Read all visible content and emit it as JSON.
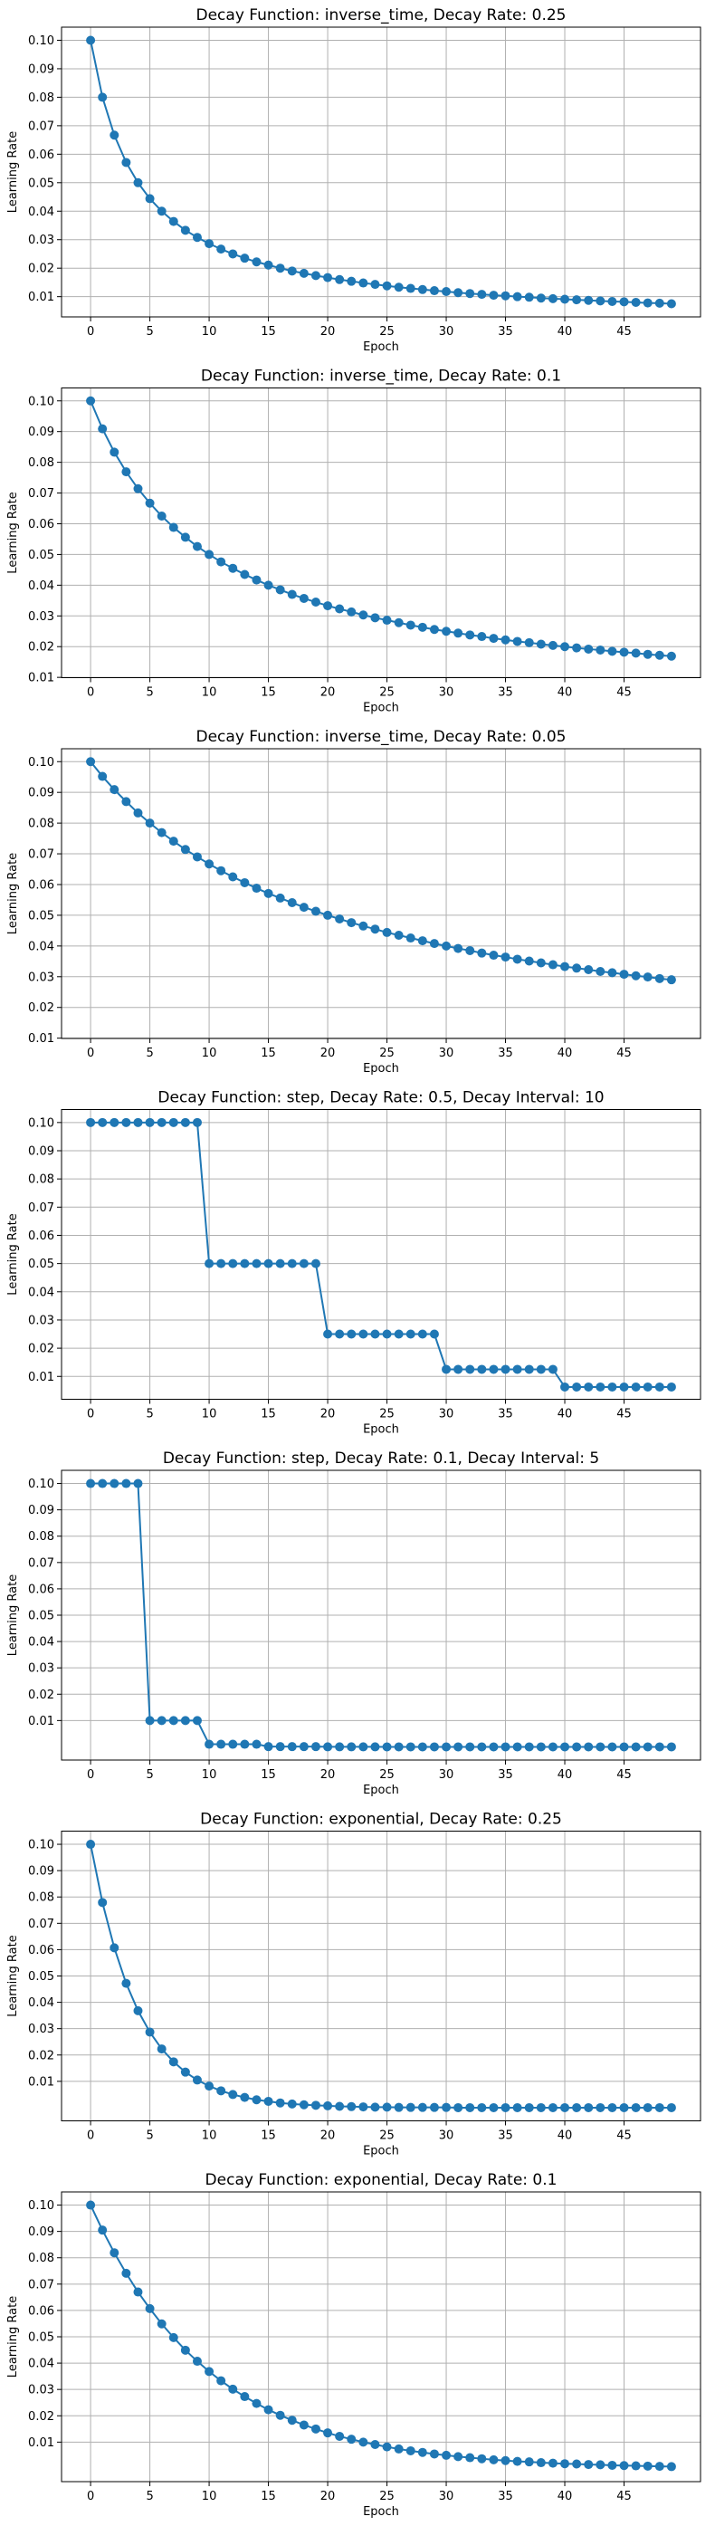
{
  "chart_data": [
    {
      "type": "line",
      "title": "Decay Function: inverse_time, Decay Rate: 0.25",
      "xlabel": "Epoch",
      "ylabel": "Learning Rate",
      "decay_function": "inverse_time",
      "decay_rate": 0.25,
      "x": [
        0,
        1,
        2,
        3,
        4,
        5,
        6,
        7,
        8,
        9,
        10,
        11,
        12,
        13,
        14,
        15,
        16,
        17,
        18,
        19,
        20,
        21,
        22,
        23,
        24,
        25,
        26,
        27,
        28,
        29,
        30,
        31,
        32,
        33,
        34,
        35,
        36,
        37,
        38,
        39,
        40,
        41,
        42,
        43,
        44,
        45,
        46,
        47,
        48,
        49
      ],
      "values": [
        0.1,
        0.08,
        0.0667,
        0.0571,
        0.05,
        0.0444,
        0.04,
        0.0364,
        0.0333,
        0.0308,
        0.0286,
        0.0267,
        0.025,
        0.0235,
        0.0222,
        0.0211,
        0.02,
        0.019,
        0.0182,
        0.0174,
        0.0167,
        0.016,
        0.0154,
        0.0148,
        0.0143,
        0.0138,
        0.0133,
        0.0129,
        0.0125,
        0.0121,
        0.0118,
        0.0114,
        0.0111,
        0.0108,
        0.0105,
        0.0103,
        0.01,
        0.0098,
        0.0095,
        0.0093,
        0.0091,
        0.0089,
        0.0087,
        0.0085,
        0.0083,
        0.0082,
        0.008,
        0.0078,
        0.0077,
        0.0075
      ],
      "xticks": [
        0,
        5,
        10,
        15,
        20,
        25,
        30,
        35,
        40,
        45
      ],
      "yticks": [
        0.01,
        0.02,
        0.03,
        0.04,
        0.05,
        0.06,
        0.07,
        0.08,
        0.09,
        0.1
      ],
      "ytick_labels": [
        "0.01",
        "0.02",
        "0.03",
        "0.04",
        "0.05",
        "0.06",
        "0.07",
        "0.08",
        "0.09",
        "0.10"
      ],
      "xlim": [
        -2.45,
        51.45
      ],
      "ylim": [
        0.0029,
        0.1046
      ],
      "grid": true
    },
    {
      "type": "line",
      "title": "Decay Function: inverse_time, Decay Rate: 0.1",
      "xlabel": "Epoch",
      "ylabel": "Learning Rate",
      "decay_function": "inverse_time",
      "decay_rate": 0.1,
      "x": [
        0,
        1,
        2,
        3,
        4,
        5,
        6,
        7,
        8,
        9,
        10,
        11,
        12,
        13,
        14,
        15,
        16,
        17,
        18,
        19,
        20,
        21,
        22,
        23,
        24,
        25,
        26,
        27,
        28,
        29,
        30,
        31,
        32,
        33,
        34,
        35,
        36,
        37,
        38,
        39,
        40,
        41,
        42,
        43,
        44,
        45,
        46,
        47,
        48,
        49
      ],
      "values": [
        0.1,
        0.0909,
        0.0833,
        0.0769,
        0.0714,
        0.0667,
        0.0625,
        0.0588,
        0.0556,
        0.0526,
        0.05,
        0.0476,
        0.0455,
        0.0435,
        0.0417,
        0.04,
        0.0385,
        0.037,
        0.0357,
        0.0345,
        0.0333,
        0.0323,
        0.0313,
        0.0303,
        0.0294,
        0.0286,
        0.0278,
        0.027,
        0.0263,
        0.0256,
        0.025,
        0.0244,
        0.0238,
        0.0233,
        0.0227,
        0.0222,
        0.0217,
        0.0213,
        0.0208,
        0.0204,
        0.02,
        0.0196,
        0.0192,
        0.0189,
        0.0185,
        0.0182,
        0.0179,
        0.0175,
        0.0172,
        0.0169
      ],
      "xticks": [
        0,
        5,
        10,
        15,
        20,
        25,
        30,
        35,
        40,
        45
      ],
      "yticks": [
        0.01,
        0.02,
        0.03,
        0.04,
        0.05,
        0.06,
        0.07,
        0.08,
        0.09,
        0.1
      ],
      "ytick_labels": [
        "0.01",
        "0.02",
        "0.03",
        "0.04",
        "0.05",
        "0.06",
        "0.07",
        "0.08",
        "0.09",
        "0.10"
      ],
      "xlim": [
        -2.45,
        51.45
      ],
      "ylim": [
        0.0099,
        0.1042
      ],
      "grid": true
    },
    {
      "type": "line",
      "title": "Decay Function: inverse_time, Decay Rate: 0.05",
      "xlabel": "Epoch",
      "ylabel": "Learning Rate",
      "decay_function": "inverse_time",
      "decay_rate": 0.05,
      "x": [
        0,
        1,
        2,
        3,
        4,
        5,
        6,
        7,
        8,
        9,
        10,
        11,
        12,
        13,
        14,
        15,
        16,
        17,
        18,
        19,
        20,
        21,
        22,
        23,
        24,
        25,
        26,
        27,
        28,
        29,
        30,
        31,
        32,
        33,
        34,
        35,
        36,
        37,
        38,
        39,
        40,
        41,
        42,
        43,
        44,
        45,
        46,
        47,
        48,
        49
      ],
      "values": [
        0.1,
        0.0952,
        0.0909,
        0.087,
        0.0833,
        0.08,
        0.0769,
        0.0741,
        0.0714,
        0.069,
        0.0667,
        0.0645,
        0.0625,
        0.0606,
        0.0588,
        0.0571,
        0.0556,
        0.0541,
        0.0526,
        0.0513,
        0.05,
        0.0488,
        0.0476,
        0.0465,
        0.0455,
        0.0444,
        0.0435,
        0.0426,
        0.0417,
        0.0408,
        0.04,
        0.0392,
        0.0385,
        0.0377,
        0.037,
        0.0364,
        0.0357,
        0.0351,
        0.0345,
        0.0339,
        0.0333,
        0.0328,
        0.0323,
        0.0317,
        0.0313,
        0.0308,
        0.0303,
        0.0299,
        0.0294,
        0.029
      ],
      "xticks": [
        0,
        5,
        10,
        15,
        20,
        25,
        30,
        35,
        40,
        45
      ],
      "yticks": [
        0.01,
        0.02,
        0.03,
        0.04,
        0.05,
        0.06,
        0.07,
        0.08,
        0.09,
        0.1
      ],
      "ytick_labels": [
        "0.01",
        "0.02",
        "0.03",
        "0.04",
        "0.05",
        "0.06",
        "0.07",
        "0.08",
        "0.09",
        "0.10"
      ],
      "xlim": [
        -2.45,
        51.45
      ],
      "ylim": [
        0.0099,
        0.1042
      ],
      "grid": true
    },
    {
      "type": "line",
      "title": "Decay Function: step, Decay Rate: 0.5, Decay Interval: 10",
      "xlabel": "Epoch",
      "ylabel": "Learning Rate",
      "decay_function": "step",
      "decay_rate": 0.5,
      "decay_interval": 10,
      "x": [
        0,
        1,
        2,
        3,
        4,
        5,
        6,
        7,
        8,
        9,
        10,
        11,
        12,
        13,
        14,
        15,
        16,
        17,
        18,
        19,
        20,
        21,
        22,
        23,
        24,
        25,
        26,
        27,
        28,
        29,
        30,
        31,
        32,
        33,
        34,
        35,
        36,
        37,
        38,
        39,
        40,
        41,
        42,
        43,
        44,
        45,
        46,
        47,
        48,
        49
      ],
      "values": [
        0.1,
        0.1,
        0.1,
        0.1,
        0.1,
        0.1,
        0.1,
        0.1,
        0.1,
        0.1,
        0.05,
        0.05,
        0.05,
        0.05,
        0.05,
        0.05,
        0.05,
        0.05,
        0.05,
        0.05,
        0.025,
        0.025,
        0.025,
        0.025,
        0.025,
        0.025,
        0.025,
        0.025,
        0.025,
        0.025,
        0.0125,
        0.0125,
        0.0125,
        0.0125,
        0.0125,
        0.0125,
        0.0125,
        0.0125,
        0.0125,
        0.0125,
        0.00625,
        0.00625,
        0.00625,
        0.00625,
        0.00625,
        0.00625,
        0.00625,
        0.00625,
        0.00625,
        0.00625
      ],
      "xticks": [
        0,
        5,
        10,
        15,
        20,
        25,
        30,
        35,
        40,
        45
      ],
      "yticks": [
        0.01,
        0.02,
        0.03,
        0.04,
        0.05,
        0.06,
        0.07,
        0.08,
        0.09,
        0.1
      ],
      "ytick_labels": [
        "0.01",
        "0.02",
        "0.03",
        "0.04",
        "0.05",
        "0.06",
        "0.07",
        "0.08",
        "0.09",
        "0.10"
      ],
      "xlim": [
        -2.45,
        51.45
      ],
      "ylim": [
        0.0019,
        0.1046
      ],
      "grid": true
    },
    {
      "type": "line",
      "title": "Decay Function: step, Decay Rate: 0.1, Decay Interval: 5",
      "xlabel": "Epoch",
      "ylabel": "Learning Rate",
      "decay_function": "step",
      "decay_rate": 0.1,
      "decay_interval": 5,
      "x": [
        0,
        1,
        2,
        3,
        4,
        5,
        6,
        7,
        8,
        9,
        10,
        11,
        12,
        13,
        14,
        15,
        16,
        17,
        18,
        19,
        20,
        21,
        22,
        23,
        24,
        25,
        26,
        27,
        28,
        29,
        30,
        31,
        32,
        33,
        34,
        35,
        36,
        37,
        38,
        39,
        40,
        41,
        42,
        43,
        44,
        45,
        46,
        47,
        48,
        49
      ],
      "values": [
        0.1,
        0.1,
        0.1,
        0.1,
        0.1,
        0.01,
        0.01,
        0.01,
        0.01,
        0.01,
        0.001,
        0.001,
        0.001,
        0.001,
        0.001,
        0.0001,
        0.0001,
        0.0001,
        0.0001,
        0.0001,
        1e-05,
        1e-05,
        1e-05,
        1e-05,
        1e-05,
        1e-06,
        1e-06,
        1e-06,
        1e-06,
        1e-06,
        1e-07,
        1e-07,
        1e-07,
        1e-07,
        1e-07,
        1e-08,
        1e-08,
        1e-08,
        1e-08,
        1e-08,
        1e-09,
        1e-09,
        1e-09,
        1e-09,
        1e-09,
        1e-10,
        1e-10,
        1e-10,
        1e-10,
        1e-10
      ],
      "xticks": [
        0,
        5,
        10,
        15,
        20,
        25,
        30,
        35,
        40,
        45
      ],
      "yticks": [
        0.01,
        0.02,
        0.03,
        0.04,
        0.05,
        0.06,
        0.07,
        0.08,
        0.09,
        0.1
      ],
      "ytick_labels": [
        "0.01",
        "0.02",
        "0.03",
        "0.04",
        "0.05",
        "0.06",
        "0.07",
        "0.08",
        "0.09",
        "0.10"
      ],
      "xlim": [
        -2.45,
        51.45
      ],
      "ylim": [
        -0.005,
        0.105
      ],
      "grid": true
    },
    {
      "type": "line",
      "title": "Decay Function: exponential, Decay Rate: 0.25",
      "xlabel": "Epoch",
      "ylabel": "Learning Rate",
      "decay_function": "exponential",
      "decay_rate": 0.25,
      "x": [
        0,
        1,
        2,
        3,
        4,
        5,
        6,
        7,
        8,
        9,
        10,
        11,
        12,
        13,
        14,
        15,
        16,
        17,
        18,
        19,
        20,
        21,
        22,
        23,
        24,
        25,
        26,
        27,
        28,
        29,
        30,
        31,
        32,
        33,
        34,
        35,
        36,
        37,
        38,
        39,
        40,
        41,
        42,
        43,
        44,
        45,
        46,
        47,
        48,
        49
      ],
      "values": [
        0.1,
        0.0779,
        0.0607,
        0.0472,
        0.0368,
        0.0287,
        0.0223,
        0.0174,
        0.0135,
        0.0105,
        0.0082,
        0.0064,
        0.005,
        0.0039,
        0.003,
        0.0024,
        0.0018,
        0.0014,
        0.0011,
        0.0009,
        0.0007,
        0.0005,
        0.0004,
        0.0003,
        0.0002,
        0.0002,
        0.0001,
        0.0001,
        0.0001,
        0.0001,
        0.0001,
        0,
        0,
        0,
        0,
        0,
        0,
        0,
        0,
        0,
        0,
        0,
        0,
        0,
        0,
        0,
        0,
        0,
        0,
        0
      ],
      "xticks": [
        0,
        5,
        10,
        15,
        20,
        25,
        30,
        35,
        40,
        45
      ],
      "yticks": [
        0.01,
        0.02,
        0.03,
        0.04,
        0.05,
        0.06,
        0.07,
        0.08,
        0.09,
        0.1
      ],
      "ytick_labels": [
        "0.01",
        "0.02",
        "0.03",
        "0.04",
        "0.05",
        "0.06",
        "0.07",
        "0.08",
        "0.09",
        "0.10"
      ],
      "xlim": [
        -2.45,
        51.45
      ],
      "ylim": [
        -0.005,
        0.105
      ],
      "grid": true
    },
    {
      "type": "line",
      "title": "Decay Function: exponential, Decay Rate: 0.1",
      "xlabel": "Epoch",
      "ylabel": "Learning Rate",
      "decay_function": "exponential",
      "decay_rate": 0.1,
      "x": [
        0,
        1,
        2,
        3,
        4,
        5,
        6,
        7,
        8,
        9,
        10,
        11,
        12,
        13,
        14,
        15,
        16,
        17,
        18,
        19,
        20,
        21,
        22,
        23,
        24,
        25,
        26,
        27,
        28,
        29,
        30,
        31,
        32,
        33,
        34,
        35,
        36,
        37,
        38,
        39,
        40,
        41,
        42,
        43,
        44,
        45,
        46,
        47,
        48,
        49
      ],
      "values": [
        0.1,
        0.0905,
        0.0819,
        0.0741,
        0.067,
        0.0607,
        0.0549,
        0.0497,
        0.0449,
        0.0407,
        0.0368,
        0.0333,
        0.0301,
        0.0273,
        0.0247,
        0.0223,
        0.0202,
        0.0183,
        0.0165,
        0.015,
        0.0135,
        0.0122,
        0.0111,
        0.01,
        0.0091,
        0.0082,
        0.0074,
        0.0067,
        0.0061,
        0.0055,
        0.005,
        0.0045,
        0.0041,
        0.0037,
        0.0033,
        0.003,
        0.0027,
        0.0025,
        0.0022,
        0.002,
        0.0018,
        0.0017,
        0.0015,
        0.0014,
        0.0012,
        0.0011,
        0.001,
        0.0009,
        0.0008,
        0.0007
      ],
      "xticks": [
        0,
        5,
        10,
        15,
        20,
        25,
        30,
        35,
        40,
        45
      ],
      "yticks": [
        0.01,
        0.02,
        0.03,
        0.04,
        0.05,
        0.06,
        0.07,
        0.08,
        0.09,
        0.1
      ],
      "ytick_labels": [
        "0.01",
        "0.02",
        "0.03",
        "0.04",
        "0.05",
        "0.06",
        "0.07",
        "0.08",
        "0.09",
        "0.10"
      ],
      "xlim": [
        -2.45,
        51.45
      ],
      "ylim": [
        -0.005,
        0.105
      ],
      "grid": true
    }
  ]
}
